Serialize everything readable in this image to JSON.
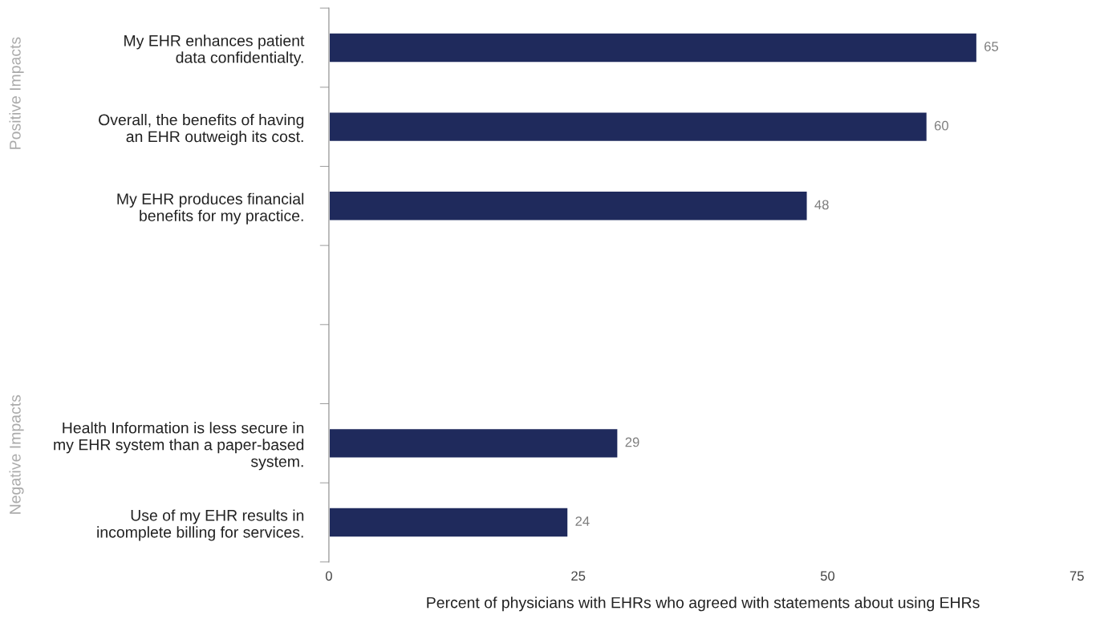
{
  "chart_data": {
    "type": "bar",
    "orientation": "horizontal",
    "xlabel": "Percent of physicians with EHRs who agreed with statements about using EHRs",
    "categories": [
      "My EHR enhances patient\ndata confidentialty.",
      "Overall, the benefits of having\nan EHR outweigh its cost.",
      "My EHR produces financial\nbenefits for my practice.",
      null,
      null,
      "Health Information is less secure in\nmy EHR system than a paper-based\nsystem.",
      "Use of my EHR results in\nincomplete billing for services."
    ],
    "values": [
      65,
      60,
      48,
      null,
      null,
      29,
      24
    ],
    "color": "#1f2a5c",
    "xlim": [
      0,
      75
    ],
    "xticks": [
      0,
      25,
      50,
      75
    ],
    "data_labels": true,
    "grid": false,
    "legend": false,
    "annotations": [
      "Positive Impacts",
      "Negative Impacts"
    ]
  }
}
